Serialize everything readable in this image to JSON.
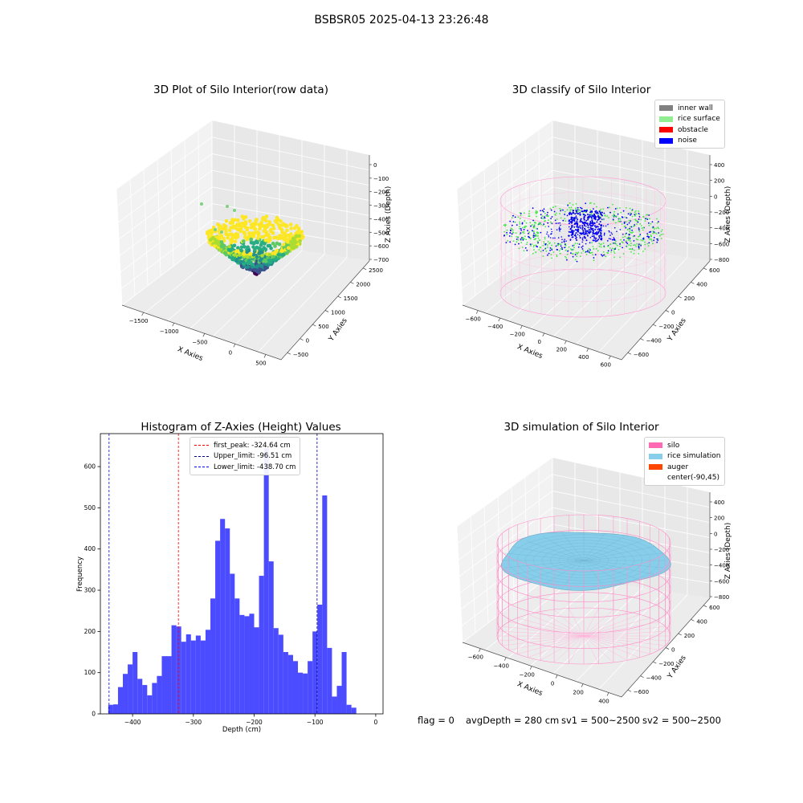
{
  "figure": {
    "suptitle": "BSBSR05 2025-04-13 23:26:48",
    "footer": {
      "flag": "flag = 0",
      "avg_depth": "avgDepth = 280 cm",
      "sv1": "sv1 = 500~2500",
      "sv2": "sv2 = 500~2500"
    }
  },
  "chart_data": [
    {
      "type": "scatter",
      "projection": "3d",
      "title": "3D Plot of Silo Interior(row data)",
      "xlabel": "X Axies",
      "ylabel": "Y Axies",
      "zlabel": "Z Axies (Depth)",
      "xticks": [
        "−1500",
        "−1000",
        "−500",
        "0",
        "500"
      ],
      "yticks": [
        "−500",
        "0",
        "500",
        "1000",
        "1500",
        "2000",
        "2500"
      ],
      "zticks": [
        "0",
        "−100",
        "−200",
        "−300",
        "−400",
        "−500",
        "−600",
        "−700"
      ],
      "colormap": "viridis",
      "grid": true
    },
    {
      "type": "scatter",
      "projection": "3d",
      "title": "3D classify of Silo Interior",
      "xlabel": "X Axies",
      "ylabel": "Y Axies",
      "zlabel": "Z Axies (Depth)",
      "xticks": [
        "−600",
        "−400",
        "−200",
        "0",
        "200",
        "400",
        "600"
      ],
      "yticks": [
        "−600",
        "−400",
        "−200",
        "0",
        "200",
        "400",
        "600"
      ],
      "zticks": [
        "400",
        "200",
        "0",
        "−200",
        "−400",
        "−600",
        "−800"
      ],
      "legend": [
        {
          "label": "inner wall",
          "color": "#808080"
        },
        {
          "label": "rice surface",
          "color": "#90ee90"
        },
        {
          "label": "obstacle",
          "color": "#ff0000"
        },
        {
          "label": "noise",
          "color": "#0000ff"
        }
      ],
      "legend_position": "top-right",
      "grid": true
    },
    {
      "type": "bar",
      "title": "Histogram of Z-Axies (Height) Values",
      "xlabel": "Depth (cm)",
      "ylabel": "Frequency",
      "xlim": [
        -453,
        12
      ],
      "ylim": [
        0,
        680
      ],
      "xticks": [
        -400,
        -300,
        -200,
        -100,
        0
      ],
      "xtick_labels": [
        "−400",
        "−300",
        "−200",
        "−100",
        "0"
      ],
      "yticks": [
        0,
        100,
        200,
        300,
        400,
        500,
        600
      ],
      "bin_start": -440,
      "bin_width": 8,
      "values": [
        22,
        23,
        65,
        97,
        120,
        150,
        85,
        70,
        45,
        75,
        92,
        140,
        140,
        215,
        212,
        175,
        193,
        178,
        190,
        178,
        204,
        280,
        420,
        473,
        450,
        340,
        280,
        240,
        237,
        243,
        210,
        335,
        645,
        370,
        208,
        192,
        150,
        143,
        128,
        100,
        98,
        128,
        200,
        265,
        530,
        160,
        42,
        68,
        150,
        22,
        15
      ],
      "bar_color": "#4b4bff",
      "vlines": [
        {
          "x": -324.64,
          "label": "first_peak: -324.64 cm",
          "color": "#ff0000"
        },
        {
          "x": -96.51,
          "label": "Upper_limit: -96.51 cm",
          "color": "#00008b"
        },
        {
          "x": -438.7,
          "label": "Lower_limit: -438.70 cm",
          "color": "#0000ff"
        }
      ],
      "legend_position": "top-center"
    },
    {
      "type": "surface",
      "projection": "3d",
      "title": "3D simulation of Silo Interior",
      "xlabel": "X Axies",
      "ylabel": "Y Axies",
      "zlabel": "Z Axies (Depth)",
      "xticks": [
        "−600",
        "−400",
        "−200",
        "0",
        "200",
        "400"
      ],
      "yticks": [
        "−600",
        "−400",
        "−200",
        "0",
        "200",
        "400",
        "600"
      ],
      "zticks": [
        "400",
        "200",
        "0",
        "−200",
        "−400",
        "−600",
        "−800"
      ],
      "legend": [
        {
          "label": "silo",
          "color": "#ff69b4"
        },
        {
          "label": "rice simulation",
          "color": "#87ceeb"
        },
        {
          "label": "auger",
          "color": "#ff4500"
        },
        {
          "label": "center(-90,45)",
          "color": "none"
        }
      ],
      "legend_position": "top-right",
      "grid": true
    }
  ]
}
